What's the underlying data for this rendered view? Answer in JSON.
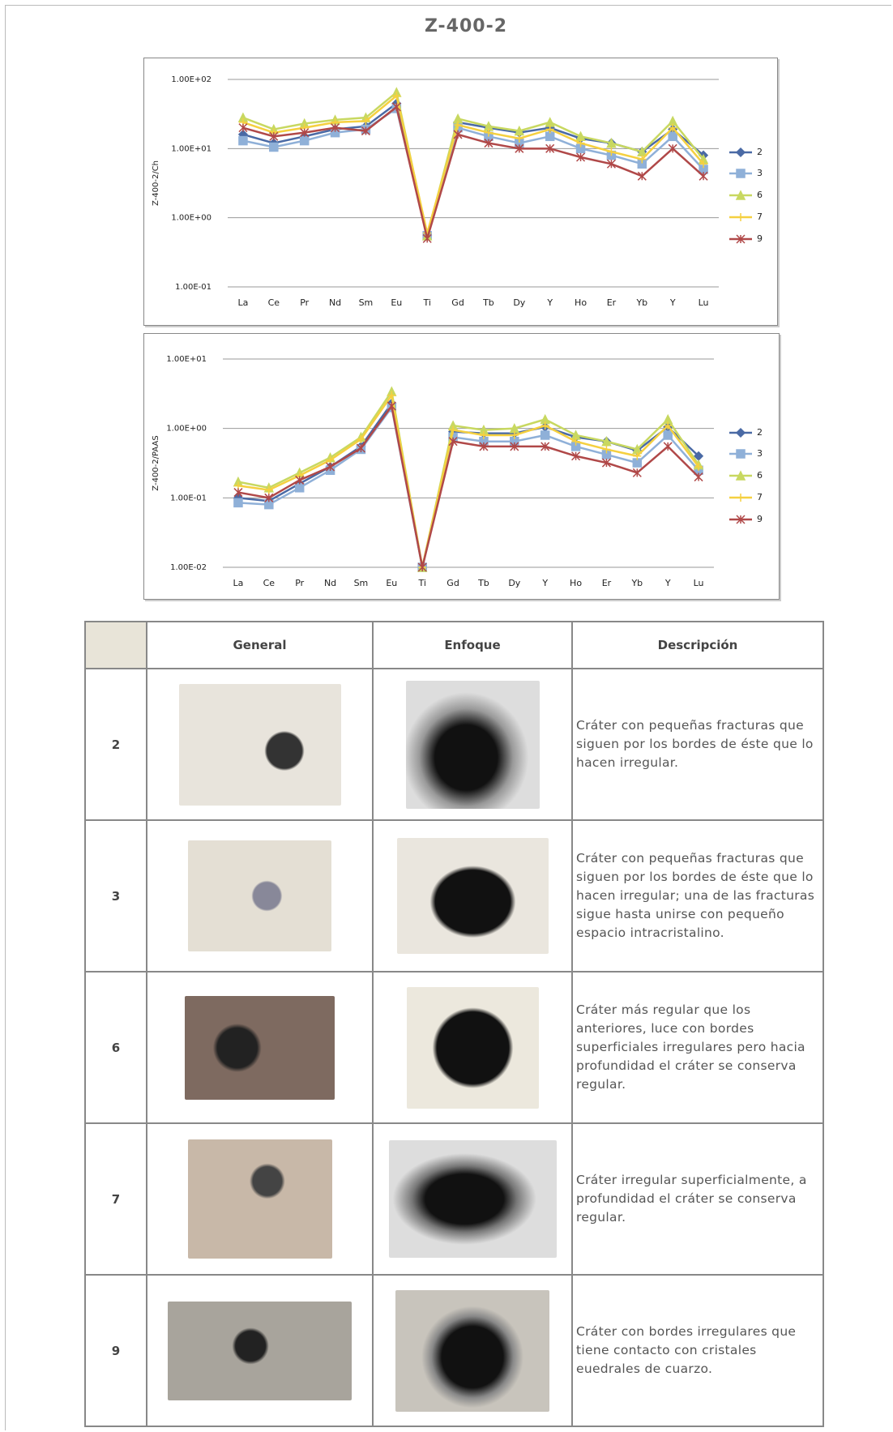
{
  "title": "Z-400-2",
  "chart_data": [
    {
      "type": "line",
      "y_label": "Z-400-2/Ch",
      "log_scale": true,
      "grid": true,
      "legend": "right",
      "categories": [
        "La",
        "Ce",
        "Pr",
        "Nd",
        "Sm",
        "Eu",
        "Ti",
        "Gd",
        "Tb",
        "Dy",
        "Y",
        "Ho",
        "Er",
        "Yb",
        "Y",
        "Lu"
      ],
      "ylim": [
        0.1,
        100
      ],
      "yticks": [
        {
          "value": 100,
          "label": "1.00E+02"
        },
        {
          "value": 10,
          "label": "1.00E+01"
        },
        {
          "value": 1,
          "label": "1.00E+00"
        },
        {
          "value": 0.1,
          "label": "1.00E-01"
        }
      ],
      "series": [
        {
          "name": "2",
          "color": "#4a6aa5",
          "marker": "diamond",
          "values": [
            16,
            12,
            15,
            19,
            21,
            45,
            0.55,
            24,
            20,
            17,
            20,
            14,
            12,
            9,
            19,
            8
          ]
        },
        {
          "name": "3",
          "color": "#8fb0d8",
          "marker": "square",
          "values": [
            13,
            10.5,
            13,
            17,
            19,
            38,
            0.55,
            20,
            15,
            12,
            15,
            10,
            8,
            6,
            15,
            5
          ]
        },
        {
          "name": "6",
          "color": "#c8d860",
          "marker": "triangle",
          "values": [
            28,
            19,
            23,
            26,
            28,
            65,
            0.55,
            27,
            21,
            18,
            24,
            15,
            12,
            9,
            25,
            7
          ]
        },
        {
          "name": "7",
          "color": "#f5d040",
          "marker": "cross",
          "values": [
            24,
            17,
            20,
            24,
            25,
            58,
            0.6,
            22,
            17,
            14,
            19,
            12,
            9,
            7,
            20,
            6
          ]
        },
        {
          "name": "9",
          "color": "#b04848",
          "marker": "star",
          "values": [
            20,
            15,
            17,
            20,
            18,
            40,
            0.5,
            16,
            12,
            10,
            10,
            7.5,
            6,
            4,
            10,
            4
          ]
        }
      ]
    },
    {
      "type": "line",
      "y_label": "Z-400-2/PAAS",
      "log_scale": true,
      "grid": true,
      "legend": "right",
      "categories": [
        "La",
        "Ce",
        "Pr",
        "Nd",
        "Sm",
        "Eu",
        "Ti",
        "Gd",
        "Tb",
        "Dy",
        "Y",
        "Ho",
        "Er",
        "Yb",
        "Y",
        "Lu"
      ],
      "ylim": [
        0.01,
        10
      ],
      "yticks": [
        {
          "value": 10,
          "label": "1.00E+01"
        },
        {
          "value": 1,
          "label": "1.00E+00"
        },
        {
          "value": 0.1,
          "label": "1.00E-01"
        },
        {
          "value": 0.01,
          "label": "1.00E-02"
        }
      ],
      "series": [
        {
          "name": "2",
          "color": "#4a6aa5",
          "marker": "diamond",
          "values": [
            0.1,
            0.09,
            0.16,
            0.28,
            0.55,
            2.3,
            0.01,
            0.9,
            0.85,
            0.85,
            1.05,
            0.75,
            0.65,
            0.48,
            1.05,
            0.4
          ]
        },
        {
          "name": "3",
          "color": "#8fb0d8",
          "marker": "square",
          "values": [
            0.085,
            0.08,
            0.14,
            0.25,
            0.5,
            2.0,
            0.01,
            0.75,
            0.65,
            0.65,
            0.8,
            0.55,
            0.42,
            0.32,
            0.8,
            0.25
          ]
        },
        {
          "name": "6",
          "color": "#c8d860",
          "marker": "triangle",
          "values": [
            0.17,
            0.14,
            0.23,
            0.38,
            0.75,
            3.4,
            0.01,
            1.1,
            0.95,
            1.0,
            1.35,
            0.8,
            0.65,
            0.5,
            1.35,
            0.3
          ]
        },
        {
          "name": "7",
          "color": "#f5d040",
          "marker": "cross",
          "values": [
            0.15,
            0.13,
            0.21,
            0.35,
            0.7,
            3.0,
            0.01,
            0.95,
            0.8,
            0.8,
            1.1,
            0.65,
            0.5,
            0.4,
            1.1,
            0.28
          ]
        },
        {
          "name": "9",
          "color": "#b04848",
          "marker": "star",
          "values": [
            0.12,
            0.1,
            0.18,
            0.28,
            0.52,
            2.1,
            0.01,
            0.65,
            0.55,
            0.55,
            0.55,
            0.4,
            0.32,
            0.23,
            0.55,
            0.2
          ]
        }
      ]
    }
  ],
  "table": {
    "headers": [
      "General",
      "Enfoque",
      "Descripción"
    ],
    "rows": [
      {
        "sample": "2",
        "description": "Cráter con pequeñas fracturas que siguen por los bordes de éste que lo hacen irregular."
      },
      {
        "sample": "3",
        "description": "Cráter con pequeñas fracturas que siguen por los bordes de éste que lo hacen irregular; una de las fracturas sigue hasta unirse con pequeño espacio intracristalino."
      },
      {
        "sample": "6",
        "description": "Cráter más regular que los anteriores, luce con bordes superficiales irregulares pero hacia profundidad el cráter se conserva regular."
      },
      {
        "sample": "7",
        "description": "Cráter irregular superficialmente, a profundidad el cráter se conserva regular."
      },
      {
        "sample": "9",
        "description": "Cráter con bordes irregulares que tiene contacto con cristales euedrales de cuarzo."
      }
    ]
  }
}
